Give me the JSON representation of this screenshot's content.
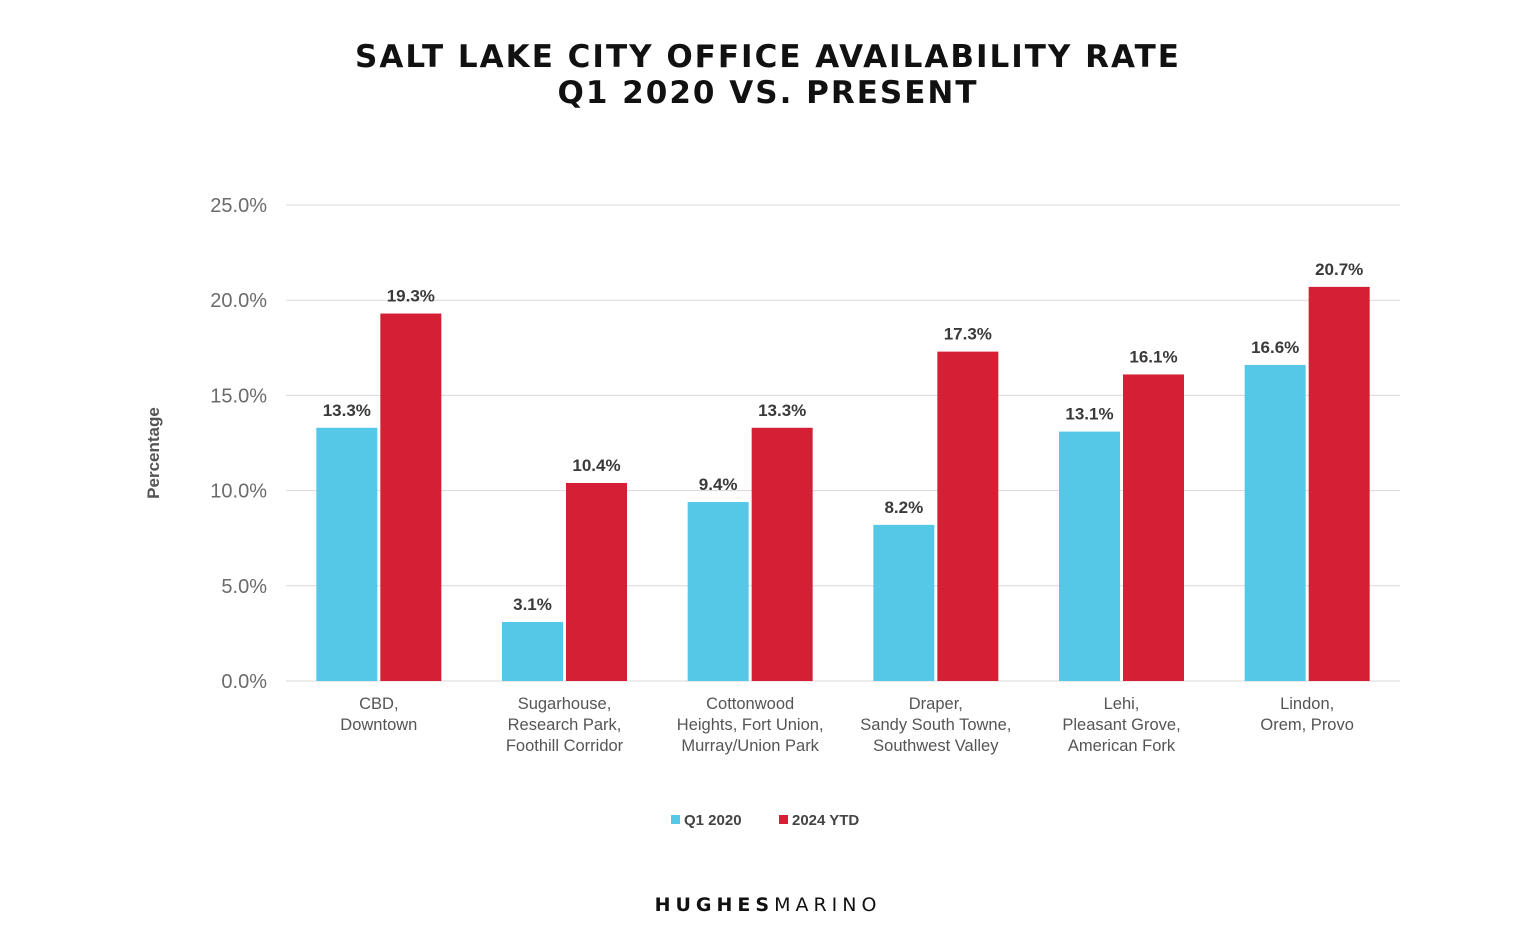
{
  "chart_data": {
    "type": "bar",
    "title": [
      "SALT LAKE CITY OFFICE AVAILABILITY RATE",
      "Q1 2020 VS. PRESENT"
    ],
    "ylabel": "Percentage",
    "ylim": [
      0,
      25
    ],
    "yticks": [
      "0.0%",
      "5.0%",
      "10.0%",
      "15.0%",
      "20.0%",
      "25.0%"
    ],
    "categories": [
      [
        "CBD,",
        "Downtown"
      ],
      [
        "Sugarhouse,",
        "Research Park,",
        "Foothill Corridor"
      ],
      [
        "Cottonwood",
        "Heights, Fort Union,",
        "Murray/Union Park"
      ],
      [
        "Draper,",
        "Sandy South Towne,",
        "Southwest Valley"
      ],
      [
        "Lehi,",
        "Pleasant Grove,",
        "American Fork"
      ],
      [
        "Lindon,",
        "Orem, Provo"
      ]
    ],
    "series": [
      {
        "name": "Q1 2020",
        "color": "#55c8e8",
        "values": [
          13.3,
          3.1,
          9.4,
          8.2,
          13.1,
          16.6
        ],
        "labels": [
          "13.3%",
          "3.1%",
          "9.4%",
          "8.2%",
          "13.1%",
          "16.6%"
        ]
      },
      {
        "name": "2024 YTD",
        "color": "#d41f35",
        "values": [
          19.3,
          10.4,
          13.3,
          17.3,
          16.1,
          20.7
        ],
        "labels": [
          "19.3%",
          "10.4%",
          "13.3%",
          "17.3%",
          "16.1%",
          "20.7%"
        ]
      }
    ],
    "grid": true,
    "legend": "bottom-center"
  },
  "brand": {
    "bold": "HUGHES",
    "light": "MARINO"
  }
}
